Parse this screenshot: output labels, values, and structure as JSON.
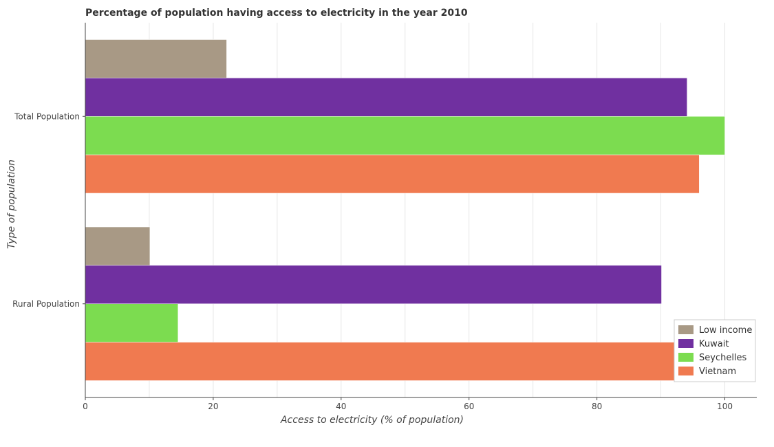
{
  "chart_data": {
    "type": "bar",
    "orientation": "horizontal",
    "title": "Percentage of population having access to electricity in the year 2010",
    "xlabel": "Access to electricity (% of population)",
    "ylabel": "Type of population",
    "xlim": [
      0,
      105
    ],
    "xticks": [
      0,
      20,
      40,
      60,
      80,
      100
    ],
    "grid": true,
    "legend_position": "bottom-right",
    "categories": [
      "Total Population",
      "Rural Population"
    ],
    "series": [
      {
        "name": "Low income",
        "color": "#a89985",
        "values": [
          22.1,
          10.1
        ]
      },
      {
        "name": "Kuwait",
        "color": "#7030a0",
        "values": [
          94.1,
          90.1
        ]
      },
      {
        "name": "Seychelles",
        "color": "#7cdc50",
        "values": [
          100,
          14.5
        ]
      },
      {
        "name": "Vietnam",
        "color": "#f07a50",
        "values": [
          96,
          94.9
        ]
      }
    ]
  }
}
